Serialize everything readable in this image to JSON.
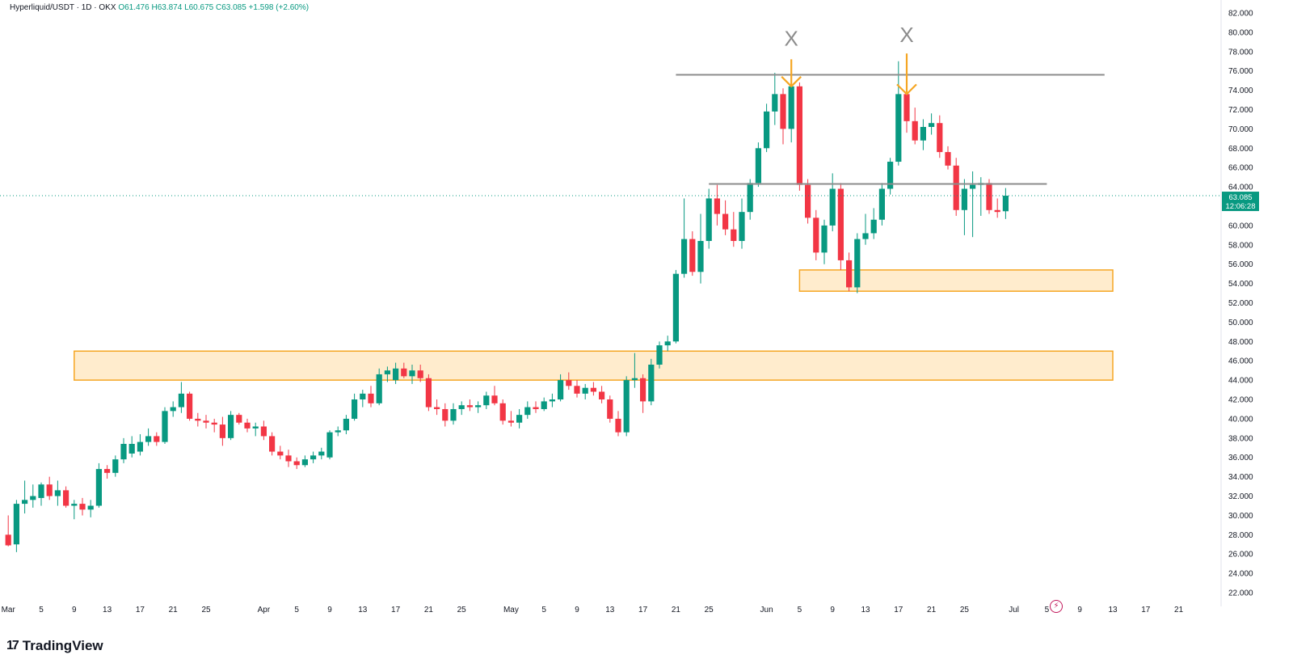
{
  "header": {
    "symbol": "Hyperliquid/USDT · 1D · OKX",
    "open": "O61.476",
    "high": "H63.874",
    "low": "L60.675",
    "close": "C63.085",
    "change": "+1.598 (+2.60%)"
  },
  "last_price": {
    "value": "63.085",
    "countdown": "12:06:28"
  },
  "brand": {
    "name": "TradingView",
    "mark": "17"
  },
  "colors": {
    "up": "#089981",
    "down": "#f23645",
    "zone_fill": "#ffe9c4",
    "zone_border": "#f5a623",
    "level_line": "#8c8c8c",
    "arrow": "#f5a623"
  },
  "chart_data": {
    "type": "candlestick",
    "title": "",
    "ylim": [
      21,
      82.5
    ],
    "y_ticks": [
      "82.000",
      "80.000",
      "78.000",
      "76.000",
      "74.000",
      "72.000",
      "70.000",
      "68.000",
      "66.000",
      "64.000",
      "62.000",
      "60.000",
      "58.000",
      "56.000",
      "54.000",
      "52.000",
      "50.000",
      "48.000",
      "46.000",
      "44.000",
      "42.000",
      "40.000",
      "38.000",
      "36.000",
      "34.000",
      "32.000",
      "30.000",
      "28.000",
      "26.000",
      "24.000",
      "22.000"
    ],
    "x_ticks": [
      "Mar",
      "5",
      "9",
      "13",
      "17",
      "21",
      "25",
      "Apr",
      "5",
      "9",
      "13",
      "17",
      "21",
      "25",
      "May",
      "5",
      "9",
      "13",
      "17",
      "21",
      "25",
      "Jun",
      "5",
      "9",
      "13",
      "17",
      "21",
      "25",
      "Jul",
      "5",
      "9",
      "13",
      "17",
      "21"
    ],
    "candles": [
      {
        "date": "2025-03-01",
        "o": 28.0,
        "h": 30.0,
        "l": 26.8,
        "c": 26.9
      },
      {
        "date": "2025-03-02",
        "o": 27.0,
        "h": 31.6,
        "l": 26.2,
        "c": 31.2
      },
      {
        "date": "2025-03-03",
        "o": 31.2,
        "h": 33.6,
        "l": 30.2,
        "c": 31.6
      },
      {
        "date": "2025-03-04",
        "o": 31.6,
        "h": 33.2,
        "l": 30.8,
        "c": 32.0
      },
      {
        "date": "2025-03-05",
        "o": 31.8,
        "h": 33.4,
        "l": 31.0,
        "c": 33.2
      },
      {
        "date": "2025-03-06",
        "o": 33.2,
        "h": 34.0,
        "l": 31.6,
        "c": 32.0
      },
      {
        "date": "2025-03-07",
        "o": 32.0,
        "h": 33.6,
        "l": 31.0,
        "c": 32.6
      },
      {
        "date": "2025-03-08",
        "o": 32.6,
        "h": 33.0,
        "l": 30.8,
        "c": 31.0
      },
      {
        "date": "2025-03-09",
        "o": 31.0,
        "h": 31.6,
        "l": 29.6,
        "c": 31.2
      },
      {
        "date": "2025-03-10",
        "o": 31.2,
        "h": 31.8,
        "l": 30.0,
        "c": 30.6
      },
      {
        "date": "2025-03-11",
        "o": 30.6,
        "h": 31.6,
        "l": 29.8,
        "c": 31.0
      },
      {
        "date": "2025-03-12",
        "o": 31.0,
        "h": 35.4,
        "l": 30.8,
        "c": 34.8
      },
      {
        "date": "2025-03-13",
        "o": 34.8,
        "h": 35.2,
        "l": 33.8,
        "c": 34.4
      },
      {
        "date": "2025-03-14",
        "o": 34.4,
        "h": 36.2,
        "l": 34.0,
        "c": 35.8
      },
      {
        "date": "2025-03-15",
        "o": 35.8,
        "h": 38.0,
        "l": 35.4,
        "c": 37.4
      },
      {
        "date": "2025-03-16",
        "o": 36.4,
        "h": 38.2,
        "l": 36.0,
        "c": 37.4
      },
      {
        "date": "2025-03-17",
        "o": 36.6,
        "h": 38.4,
        "l": 36.2,
        "c": 37.6
      },
      {
        "date": "2025-03-18",
        "o": 37.6,
        "h": 39.0,
        "l": 37.2,
        "c": 38.2
      },
      {
        "date": "2025-03-19",
        "o": 38.2,
        "h": 38.6,
        "l": 37.2,
        "c": 37.6
      },
      {
        "date": "2025-03-20",
        "o": 37.6,
        "h": 41.2,
        "l": 37.4,
        "c": 40.8
      },
      {
        "date": "2025-03-21",
        "o": 40.8,
        "h": 41.8,
        "l": 40.2,
        "c": 41.2
      },
      {
        "date": "2025-03-22",
        "o": 41.2,
        "h": 43.8,
        "l": 40.6,
        "c": 42.6
      },
      {
        "date": "2025-03-23",
        "o": 42.6,
        "h": 42.8,
        "l": 39.8,
        "c": 40.0
      },
      {
        "date": "2025-03-24",
        "o": 40.0,
        "h": 40.6,
        "l": 39.2,
        "c": 39.8
      },
      {
        "date": "2025-03-25",
        "o": 39.8,
        "h": 40.4,
        "l": 39.0,
        "c": 39.6
      },
      {
        "date": "2025-03-26",
        "o": 39.6,
        "h": 40.0,
        "l": 38.6,
        "c": 39.4
      },
      {
        "date": "2025-03-27",
        "o": 39.4,
        "h": 40.2,
        "l": 37.2,
        "c": 38.0
      },
      {
        "date": "2025-03-28",
        "o": 38.0,
        "h": 40.8,
        "l": 37.8,
        "c": 40.4
      },
      {
        "date": "2025-03-29",
        "o": 40.4,
        "h": 40.6,
        "l": 39.4,
        "c": 39.6
      },
      {
        "date": "2025-03-30",
        "o": 39.6,
        "h": 40.0,
        "l": 38.6,
        "c": 39.0
      },
      {
        "date": "2025-03-31",
        "o": 39.0,
        "h": 39.6,
        "l": 38.2,
        "c": 39.2
      },
      {
        "date": "2025-04-01",
        "o": 39.2,
        "h": 39.8,
        "l": 37.8,
        "c": 38.2
      },
      {
        "date": "2025-04-02",
        "o": 38.2,
        "h": 38.6,
        "l": 36.2,
        "c": 36.6
      },
      {
        "date": "2025-04-03",
        "o": 36.6,
        "h": 37.2,
        "l": 35.8,
        "c": 36.2
      },
      {
        "date": "2025-04-04",
        "o": 36.2,
        "h": 36.8,
        "l": 35.0,
        "c": 35.6
      },
      {
        "date": "2025-04-05",
        "o": 35.6,
        "h": 36.0,
        "l": 34.8,
        "c": 35.2
      },
      {
        "date": "2025-04-06",
        "o": 35.2,
        "h": 36.2,
        "l": 35.0,
        "c": 35.8
      },
      {
        "date": "2025-04-07",
        "o": 35.8,
        "h": 36.6,
        "l": 35.4,
        "c": 36.2
      },
      {
        "date": "2025-04-08",
        "o": 36.2,
        "h": 37.0,
        "l": 35.8,
        "c": 36.6
      },
      {
        "date": "2025-04-09",
        "o": 36.0,
        "h": 38.8,
        "l": 35.8,
        "c": 38.6
      },
      {
        "date": "2025-04-10",
        "o": 38.6,
        "h": 39.2,
        "l": 38.2,
        "c": 38.8
      },
      {
        "date": "2025-04-11",
        "o": 38.8,
        "h": 40.4,
        "l": 38.4,
        "c": 40.0
      },
      {
        "date": "2025-04-12",
        "o": 40.0,
        "h": 42.6,
        "l": 39.8,
        "c": 42.0
      },
      {
        "date": "2025-04-13",
        "o": 42.0,
        "h": 43.0,
        "l": 41.2,
        "c": 42.6
      },
      {
        "date": "2025-04-14",
        "o": 42.6,
        "h": 43.4,
        "l": 41.2,
        "c": 41.6
      },
      {
        "date": "2025-04-15",
        "o": 41.6,
        "h": 45.2,
        "l": 41.4,
        "c": 44.6
      },
      {
        "date": "2025-04-16",
        "o": 44.6,
        "h": 45.4,
        "l": 43.8,
        "c": 45.0
      },
      {
        "date": "2025-04-17",
        "o": 44.0,
        "h": 45.8,
        "l": 43.6,
        "c": 45.2
      },
      {
        "date": "2025-04-18",
        "o": 45.2,
        "h": 45.8,
        "l": 44.2,
        "c": 44.4
      },
      {
        "date": "2025-04-19",
        "o": 44.4,
        "h": 45.6,
        "l": 43.6,
        "c": 45.0
      },
      {
        "date": "2025-04-20",
        "o": 45.0,
        "h": 45.6,
        "l": 43.8,
        "c": 44.2
      },
      {
        "date": "2025-04-21",
        "o": 44.2,
        "h": 44.6,
        "l": 40.8,
        "c": 41.2
      },
      {
        "date": "2025-04-22",
        "o": 41.2,
        "h": 42.0,
        "l": 40.4,
        "c": 41.0
      },
      {
        "date": "2025-04-23",
        "o": 41.0,
        "h": 41.6,
        "l": 39.2,
        "c": 39.8
      },
      {
        "date": "2025-04-24",
        "o": 39.8,
        "h": 41.6,
        "l": 39.4,
        "c": 41.0
      },
      {
        "date": "2025-04-25",
        "o": 41.0,
        "h": 41.8,
        "l": 40.4,
        "c": 41.4
      },
      {
        "date": "2025-04-26",
        "o": 41.4,
        "h": 42.0,
        "l": 40.8,
        "c": 41.2
      },
      {
        "date": "2025-04-27",
        "o": 41.2,
        "h": 41.8,
        "l": 40.6,
        "c": 41.4
      },
      {
        "date": "2025-04-28",
        "o": 41.4,
        "h": 42.8,
        "l": 41.0,
        "c": 42.4
      },
      {
        "date": "2025-04-29",
        "o": 42.4,
        "h": 43.4,
        "l": 41.4,
        "c": 41.6
      },
      {
        "date": "2025-04-30",
        "o": 41.6,
        "h": 42.0,
        "l": 39.4,
        "c": 39.8
      },
      {
        "date": "2025-05-01",
        "o": 39.8,
        "h": 40.8,
        "l": 39.2,
        "c": 39.6
      },
      {
        "date": "2025-05-02",
        "o": 39.6,
        "h": 41.0,
        "l": 39.0,
        "c": 40.4
      },
      {
        "date": "2025-05-03",
        "o": 40.4,
        "h": 41.8,
        "l": 40.0,
        "c": 41.2
      },
      {
        "date": "2025-05-04",
        "o": 41.2,
        "h": 41.8,
        "l": 40.6,
        "c": 41.0
      },
      {
        "date": "2025-05-05",
        "o": 41.0,
        "h": 42.2,
        "l": 40.8,
        "c": 41.8
      },
      {
        "date": "2025-05-06",
        "o": 41.8,
        "h": 42.6,
        "l": 41.2,
        "c": 42.0
      },
      {
        "date": "2025-05-07",
        "o": 42.0,
        "h": 44.6,
        "l": 41.8,
        "c": 44.0
      },
      {
        "date": "2025-05-08",
        "o": 44.0,
        "h": 44.8,
        "l": 43.0,
        "c": 43.4
      },
      {
        "date": "2025-05-09",
        "o": 43.4,
        "h": 44.0,
        "l": 42.2,
        "c": 42.6
      },
      {
        "date": "2025-05-10",
        "o": 42.6,
        "h": 43.6,
        "l": 42.0,
        "c": 43.2
      },
      {
        "date": "2025-05-11",
        "o": 43.2,
        "h": 43.8,
        "l": 42.4,
        "c": 42.8
      },
      {
        "date": "2025-05-12",
        "o": 42.8,
        "h": 43.4,
        "l": 41.6,
        "c": 42.0
      },
      {
        "date": "2025-05-13",
        "o": 42.0,
        "h": 42.4,
        "l": 39.6,
        "c": 40.0
      },
      {
        "date": "2025-05-14",
        "o": 40.0,
        "h": 40.8,
        "l": 38.2,
        "c": 38.6
      },
      {
        "date": "2025-05-15",
        "o": 38.6,
        "h": 44.4,
        "l": 38.2,
        "c": 44.0
      },
      {
        "date": "2025-05-16",
        "o": 44.0,
        "h": 46.8,
        "l": 43.2,
        "c": 44.2
      },
      {
        "date": "2025-05-17",
        "o": 44.2,
        "h": 44.6,
        "l": 40.6,
        "c": 41.8
      },
      {
        "date": "2025-05-18",
        "o": 41.8,
        "h": 46.2,
        "l": 41.4,
        "c": 45.6
      },
      {
        "date": "2025-05-19",
        "o": 45.6,
        "h": 48.0,
        "l": 45.2,
        "c": 47.6
      },
      {
        "date": "2025-05-20",
        "o": 47.6,
        "h": 48.6,
        "l": 47.0,
        "c": 48.0
      },
      {
        "date": "2025-05-21",
        "o": 48.0,
        "h": 55.4,
        "l": 47.8,
        "c": 55.0
      },
      {
        "date": "2025-05-22",
        "o": 55.0,
        "h": 62.8,
        "l": 54.6,
        "c": 58.6
      },
      {
        "date": "2025-05-23",
        "o": 58.6,
        "h": 59.4,
        "l": 54.8,
        "c": 55.2
      },
      {
        "date": "2025-05-24",
        "o": 55.2,
        "h": 61.2,
        "l": 54.0,
        "c": 58.4
      },
      {
        "date": "2025-05-25",
        "o": 58.4,
        "h": 63.8,
        "l": 57.6,
        "c": 62.8
      },
      {
        "date": "2025-05-26",
        "o": 62.8,
        "h": 64.2,
        "l": 60.0,
        "c": 61.2
      },
      {
        "date": "2025-05-27",
        "o": 61.2,
        "h": 62.6,
        "l": 59.0,
        "c": 59.6
      },
      {
        "date": "2025-05-28",
        "o": 59.6,
        "h": 61.4,
        "l": 57.8,
        "c": 58.4
      },
      {
        "date": "2025-05-29",
        "o": 58.4,
        "h": 62.8,
        "l": 57.6,
        "c": 61.4
      },
      {
        "date": "2025-05-30",
        "o": 61.4,
        "h": 64.8,
        "l": 60.6,
        "c": 64.4
      },
      {
        "date": "2025-05-31",
        "o": 64.4,
        "h": 68.6,
        "l": 64.0,
        "c": 68.0
      },
      {
        "date": "2025-06-01",
        "o": 68.0,
        "h": 72.6,
        "l": 67.6,
        "c": 71.8
      },
      {
        "date": "2025-06-02",
        "o": 71.8,
        "h": 75.8,
        "l": 70.4,
        "c": 73.6
      },
      {
        "date": "2025-06-03",
        "o": 73.6,
        "h": 74.2,
        "l": 68.4,
        "c": 70.0
      },
      {
        "date": "2025-06-04",
        "o": 70.0,
        "h": 75.8,
        "l": 68.6,
        "c": 74.4
      },
      {
        "date": "2025-06-05",
        "o": 74.4,
        "h": 74.8,
        "l": 63.6,
        "c": 64.2
      },
      {
        "date": "2025-06-06",
        "o": 64.2,
        "h": 64.8,
        "l": 60.2,
        "c": 60.8
      },
      {
        "date": "2025-06-07",
        "o": 60.8,
        "h": 61.6,
        "l": 56.4,
        "c": 57.2
      },
      {
        "date": "2025-06-08",
        "o": 57.2,
        "h": 60.6,
        "l": 56.0,
        "c": 60.0
      },
      {
        "date": "2025-06-09",
        "o": 60.0,
        "h": 65.4,
        "l": 59.4,
        "c": 63.8
      },
      {
        "date": "2025-06-10",
        "o": 63.8,
        "h": 64.4,
        "l": 55.4,
        "c": 56.4
      },
      {
        "date": "2025-06-11",
        "o": 56.4,
        "h": 57.2,
        "l": 53.2,
        "c": 53.6
      },
      {
        "date": "2025-06-12",
        "o": 53.6,
        "h": 59.2,
        "l": 53.0,
        "c": 58.6
      },
      {
        "date": "2025-06-13",
        "o": 58.6,
        "h": 61.2,
        "l": 58.0,
        "c": 59.2
      },
      {
        "date": "2025-06-14",
        "o": 59.2,
        "h": 61.8,
        "l": 58.6,
        "c": 60.6
      },
      {
        "date": "2025-06-15",
        "o": 60.6,
        "h": 64.4,
        "l": 60.0,
        "c": 63.8
      },
      {
        "date": "2025-06-16",
        "o": 63.8,
        "h": 67.0,
        "l": 63.2,
        "c": 66.6
      },
      {
        "date": "2025-06-17",
        "o": 66.6,
        "h": 77.0,
        "l": 66.2,
        "c": 73.6
      },
      {
        "date": "2025-06-18",
        "o": 73.6,
        "h": 74.8,
        "l": 69.6,
        "c": 70.8
      },
      {
        "date": "2025-06-19",
        "o": 70.8,
        "h": 72.2,
        "l": 68.4,
        "c": 68.8
      },
      {
        "date": "2025-06-20",
        "o": 68.8,
        "h": 71.0,
        "l": 67.8,
        "c": 70.2
      },
      {
        "date": "2025-06-21",
        "o": 70.2,
        "h": 71.6,
        "l": 69.4,
        "c": 70.6
      },
      {
        "date": "2025-06-22",
        "o": 70.6,
        "h": 71.4,
        "l": 67.0,
        "c": 67.6
      },
      {
        "date": "2025-06-23",
        "o": 67.6,
        "h": 68.2,
        "l": 65.8,
        "c": 66.2
      },
      {
        "date": "2025-06-24",
        "o": 66.2,
        "h": 67.0,
        "l": 61.0,
        "c": 61.6
      },
      {
        "date": "2025-06-25",
        "o": 61.6,
        "h": 64.8,
        "l": 59.0,
        "c": 63.8
      },
      {
        "date": "2025-06-26",
        "o": 63.8,
        "h": 65.6,
        "l": 58.8,
        "c": 64.2
      },
      {
        "date": "2025-06-27",
        "o": 64.2,
        "h": 65.0,
        "l": 61.0,
        "c": 64.4
      },
      {
        "date": "2025-06-28",
        "o": 64.4,
        "h": 64.8,
        "l": 61.2,
        "c": 61.6
      },
      {
        "date": "2025-06-29",
        "o": 61.6,
        "h": 62.8,
        "l": 60.8,
        "c": 61.4
      },
      {
        "date": "2025-06-30",
        "o": 61.476,
        "h": 63.874,
        "l": 60.675,
        "c": 63.085
      }
    ],
    "zones": [
      {
        "from": 53.2,
        "to": 55.4,
        "start": "2025-06-05",
        "end": "2025-07-13"
      },
      {
        "from": 44.0,
        "to": 47.0,
        "start": "2025-03-09",
        "end": "2025-07-13"
      }
    ],
    "levels": [
      {
        "value": 75.6,
        "start": "2025-05-21",
        "end": "2025-07-12"
      },
      {
        "value": 64.3,
        "start": "2025-05-25",
        "end": "2025-07-05"
      }
    ],
    "annotations": [
      {
        "text": "X",
        "date": "2025-06-04",
        "value": 78.6
      },
      {
        "text": "X",
        "date": "2025-06-18",
        "value": 79.0
      }
    ],
    "arrows": [
      {
        "date": "2025-06-04",
        "from": 77.2,
        "to": 74.4
      },
      {
        "date": "2025-06-18",
        "from": 77.8,
        "to": 73.6
      }
    ],
    "current_price": 63.085,
    "grid": false,
    "legend": "none"
  }
}
